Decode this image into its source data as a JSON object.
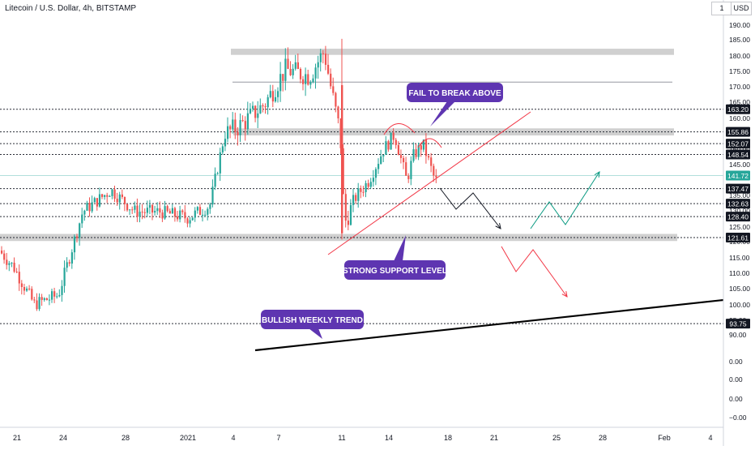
{
  "header": {
    "title": "Litecoin / U.S. Dollar, 4h, BITSTAMP",
    "currency_label": "USD",
    "menu_label": "1"
  },
  "colors": {
    "up": "#26a69a",
    "down": "#ef5350",
    "callout": "#5e35b1",
    "trend_red": "#f23645",
    "forecast_black": "#131722",
    "forecast_green": "#089981",
    "forecast_red": "#f23645",
    "zone": "#c8c8c8",
    "price_label": "#131722"
  },
  "chart_data": {
    "type": "candlestick",
    "symbol": "LTCUSD",
    "timeframe": "4h",
    "exchange": "BITSTAMP",
    "ylim": [
      -3,
      193
    ],
    "y_ticks": [
      "190.00",
      "185.00",
      "180.00",
      "175.00",
      "170.00",
      "165.00",
      "160.00",
      "155.00",
      "150.00",
      "145.00",
      "135.00",
      "130.00",
      "125.00",
      "120.00",
      "115.00",
      "110.00",
      "105.00",
      "100.00",
      "95.00",
      "90.00",
      "0.00",
      "0.00",
      "0.00",
      "−0.00"
    ],
    "x_ticks": [
      "21",
      "24",
      "28",
      "2021",
      "4",
      "7",
      "11",
      "14",
      "18",
      "21",
      "25",
      "28",
      "Feb",
      "4"
    ],
    "price_labels": [
      {
        "value": 163.2,
        "text": "163.20"
      },
      {
        "value": 155.86,
        "text": "155.86"
      },
      {
        "value": 152.07,
        "text": "152.07"
      },
      {
        "value": 148.54,
        "text": "148.54"
      },
      {
        "value": 141.72,
        "text": "141.72",
        "current": true
      },
      {
        "value": 137.47,
        "text": "137.47"
      },
      {
        "value": 132.63,
        "text": "132.63"
      },
      {
        "value": 128.4,
        "text": "128.40"
      },
      {
        "value": 121.61,
        "text": "121.61"
      },
      {
        "value": 93.75,
        "text": "93.75"
      }
    ],
    "zones": [
      {
        "from": 180.8,
        "to": 182.8
      },
      {
        "from": 154.7,
        "to": 157.0
      },
      {
        "from": 120.5,
        "to": 122.8
      }
    ],
    "resistance_line": 172.0,
    "candles_summary": [
      {
        "date": "Dec 20",
        "close": 118
      },
      {
        "date": "Dec 23",
        "close": 100
      },
      {
        "date": "Dec 26",
        "close": 137
      },
      {
        "date": "Dec 31",
        "close": 125
      },
      {
        "date": "Jan 3",
        "close": 148
      },
      {
        "date": "Jan 6",
        "close": 168
      },
      {
        "date": "Jan 10",
        "close": 185
      },
      {
        "date": "Jan 11",
        "close": 123
      },
      {
        "date": "Jan 14",
        "close": 155
      },
      {
        "date": "Jan 17",
        "close": 140
      }
    ],
    "annotations": [
      {
        "text": "FAIL TO BREAK ABOVE"
      },
      {
        "text": "STRONG SUPPORT LEVEL"
      },
      {
        "text": "BULLISH WEEKLY TREND"
      }
    ]
  }
}
